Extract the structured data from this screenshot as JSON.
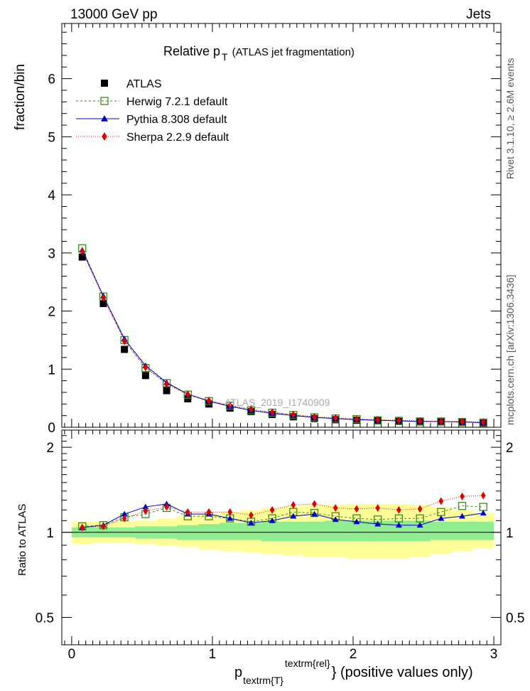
{
  "header": {
    "left": "13000 GeV pp",
    "right": "Jets"
  },
  "side": {
    "rivet": "Rivet 3.1.10, ≥ 2.6M events",
    "mcplots": "mcplots.cern.ch [arXiv:1306.3436]"
  },
  "chart_data": [
    {
      "type": "scatter",
      "title": "Relative p",
      "title_sub": "T",
      "title_suffix": "(ATLAS jet fragmentation)",
      "ylabel": "fraction/bin",
      "watermark": "ATLAS_2019_I1740909",
      "xlim": [
        -0.07,
        3.05
      ],
      "ylim": [
        0,
        6.95
      ],
      "yticks": [
        "0",
        "1",
        "2",
        "3",
        "4",
        "5",
        "6"
      ],
      "legend_position": "top-left",
      "x": [
        0.075,
        0.225,
        0.375,
        0.525,
        0.675,
        0.825,
        0.975,
        1.125,
        1.275,
        1.425,
        1.575,
        1.725,
        1.875,
        2.025,
        2.175,
        2.325,
        2.475,
        2.625,
        2.775,
        2.925
      ],
      "series": [
        {
          "name": "ATLAS",
          "color": "#000000",
          "marker": "square-filled",
          "values": [
            2.93,
            2.13,
            1.34,
            0.89,
            0.63,
            0.49,
            0.4,
            0.33,
            0.27,
            0.22,
            0.18,
            0.15,
            0.13,
            0.12,
            0.11,
            0.1,
            0.09,
            0.09,
            0.08,
            0.07
          ]
        },
        {
          "name": "Herwig 7.2.1 default",
          "color": "#3a8a1a",
          "marker": "square-open",
          "dash": "3,3",
          "values": [
            3.08,
            2.25,
            1.5,
            1.02,
            0.76,
            0.56,
            0.45,
            0.37,
            0.29,
            0.25,
            0.21,
            0.17,
            0.15,
            0.14,
            0.12,
            0.11,
            0.1,
            0.1,
            0.09,
            0.08
          ]
        },
        {
          "name": "Pythia 8.308 default",
          "color": "#0000cc",
          "marker": "triangle",
          "dash": "",
          "values": [
            3.05,
            2.26,
            1.52,
            1.06,
            0.77,
            0.57,
            0.45,
            0.36,
            0.29,
            0.24,
            0.2,
            0.17,
            0.15,
            0.13,
            0.12,
            0.11,
            0.1,
            0.1,
            0.09,
            0.08
          ]
        },
        {
          "name": "Sherpa 2.2.9 default",
          "color": "#dd0000",
          "marker": "diamond",
          "dash": "1,2",
          "values": [
            3.03,
            2.23,
            1.48,
            1.03,
            0.74,
            0.57,
            0.46,
            0.38,
            0.31,
            0.26,
            0.22,
            0.18,
            0.16,
            0.14,
            0.13,
            0.12,
            0.11,
            0.1,
            0.1,
            0.09
          ]
        }
      ]
    },
    {
      "type": "scatter",
      "ylabel": "Ratio to ATLAS",
      "xlabel": "p",
      "xlabel_sub": "textrm{T}",
      "xlabel_sup": "textrm{rel}",
      "xlabel_suffix": "} (positive values only)",
      "xlim": [
        -0.07,
        3.05
      ],
      "ylim": [
        0.4,
        2.3
      ],
      "xticks": [
        "0",
        "1",
        "2",
        "3"
      ],
      "yticks": [
        "0.5",
        "1",
        "2"
      ],
      "bands": {
        "inner_color": "#90ee90",
        "outer_color": "#ffff99",
        "inner_lo": [
          0.96,
          0.96,
          0.96,
          0.95,
          0.95,
          0.94,
          0.94,
          0.94,
          0.94,
          0.93,
          0.93,
          0.93,
          0.93,
          0.93,
          0.93,
          0.93,
          0.93,
          0.94,
          0.94,
          0.94
        ],
        "inner_hi": [
          1.04,
          1.04,
          1.04,
          1.05,
          1.05,
          1.06,
          1.07,
          1.08,
          1.08,
          1.09,
          1.09,
          1.09,
          1.1,
          1.1,
          1.1,
          1.1,
          1.1,
          1.09,
          1.09,
          1.09
        ],
        "outer_lo": [
          0.91,
          0.92,
          0.92,
          0.91,
          0.9,
          0.89,
          0.87,
          0.86,
          0.85,
          0.84,
          0.83,
          0.82,
          0.82,
          0.81,
          0.81,
          0.81,
          0.82,
          0.84,
          0.86,
          0.88
        ],
        "outer_hi": [
          1.09,
          1.09,
          1.09,
          1.1,
          1.12,
          1.14,
          1.16,
          1.18,
          1.2,
          1.22,
          1.24,
          1.25,
          1.25,
          1.26,
          1.26,
          1.26,
          1.25,
          1.23,
          1.2,
          1.17
        ]
      },
      "series": [
        {
          "name": "Herwig 7.2.1 default",
          "color": "#3a8a1a",
          "marker": "square-open",
          "dash": "3,3",
          "values": [
            1.05,
            1.06,
            1.13,
            1.16,
            1.22,
            1.14,
            1.14,
            1.12,
            1.09,
            1.12,
            1.18,
            1.17,
            1.14,
            1.12,
            1.11,
            1.12,
            1.12,
            1.18,
            1.24,
            1.23
          ]
        },
        {
          "name": "Pythia 8.308 default",
          "color": "#0000cc",
          "marker": "triangle",
          "dash": "",
          "values": [
            1.04,
            1.06,
            1.16,
            1.23,
            1.26,
            1.16,
            1.16,
            1.12,
            1.08,
            1.1,
            1.14,
            1.16,
            1.11,
            1.09,
            1.07,
            1.06,
            1.06,
            1.12,
            1.14,
            1.17
          ]
        },
        {
          "name": "Sherpa 2.2.9 default",
          "color": "#dd0000",
          "marker": "diamond",
          "dash": "1,2",
          "values": [
            1.04,
            1.05,
            1.12,
            1.19,
            1.23,
            1.18,
            1.18,
            1.18,
            1.15,
            1.2,
            1.25,
            1.26,
            1.22,
            1.21,
            1.22,
            1.2,
            1.21,
            1.29,
            1.34,
            1.35
          ]
        }
      ]
    }
  ]
}
